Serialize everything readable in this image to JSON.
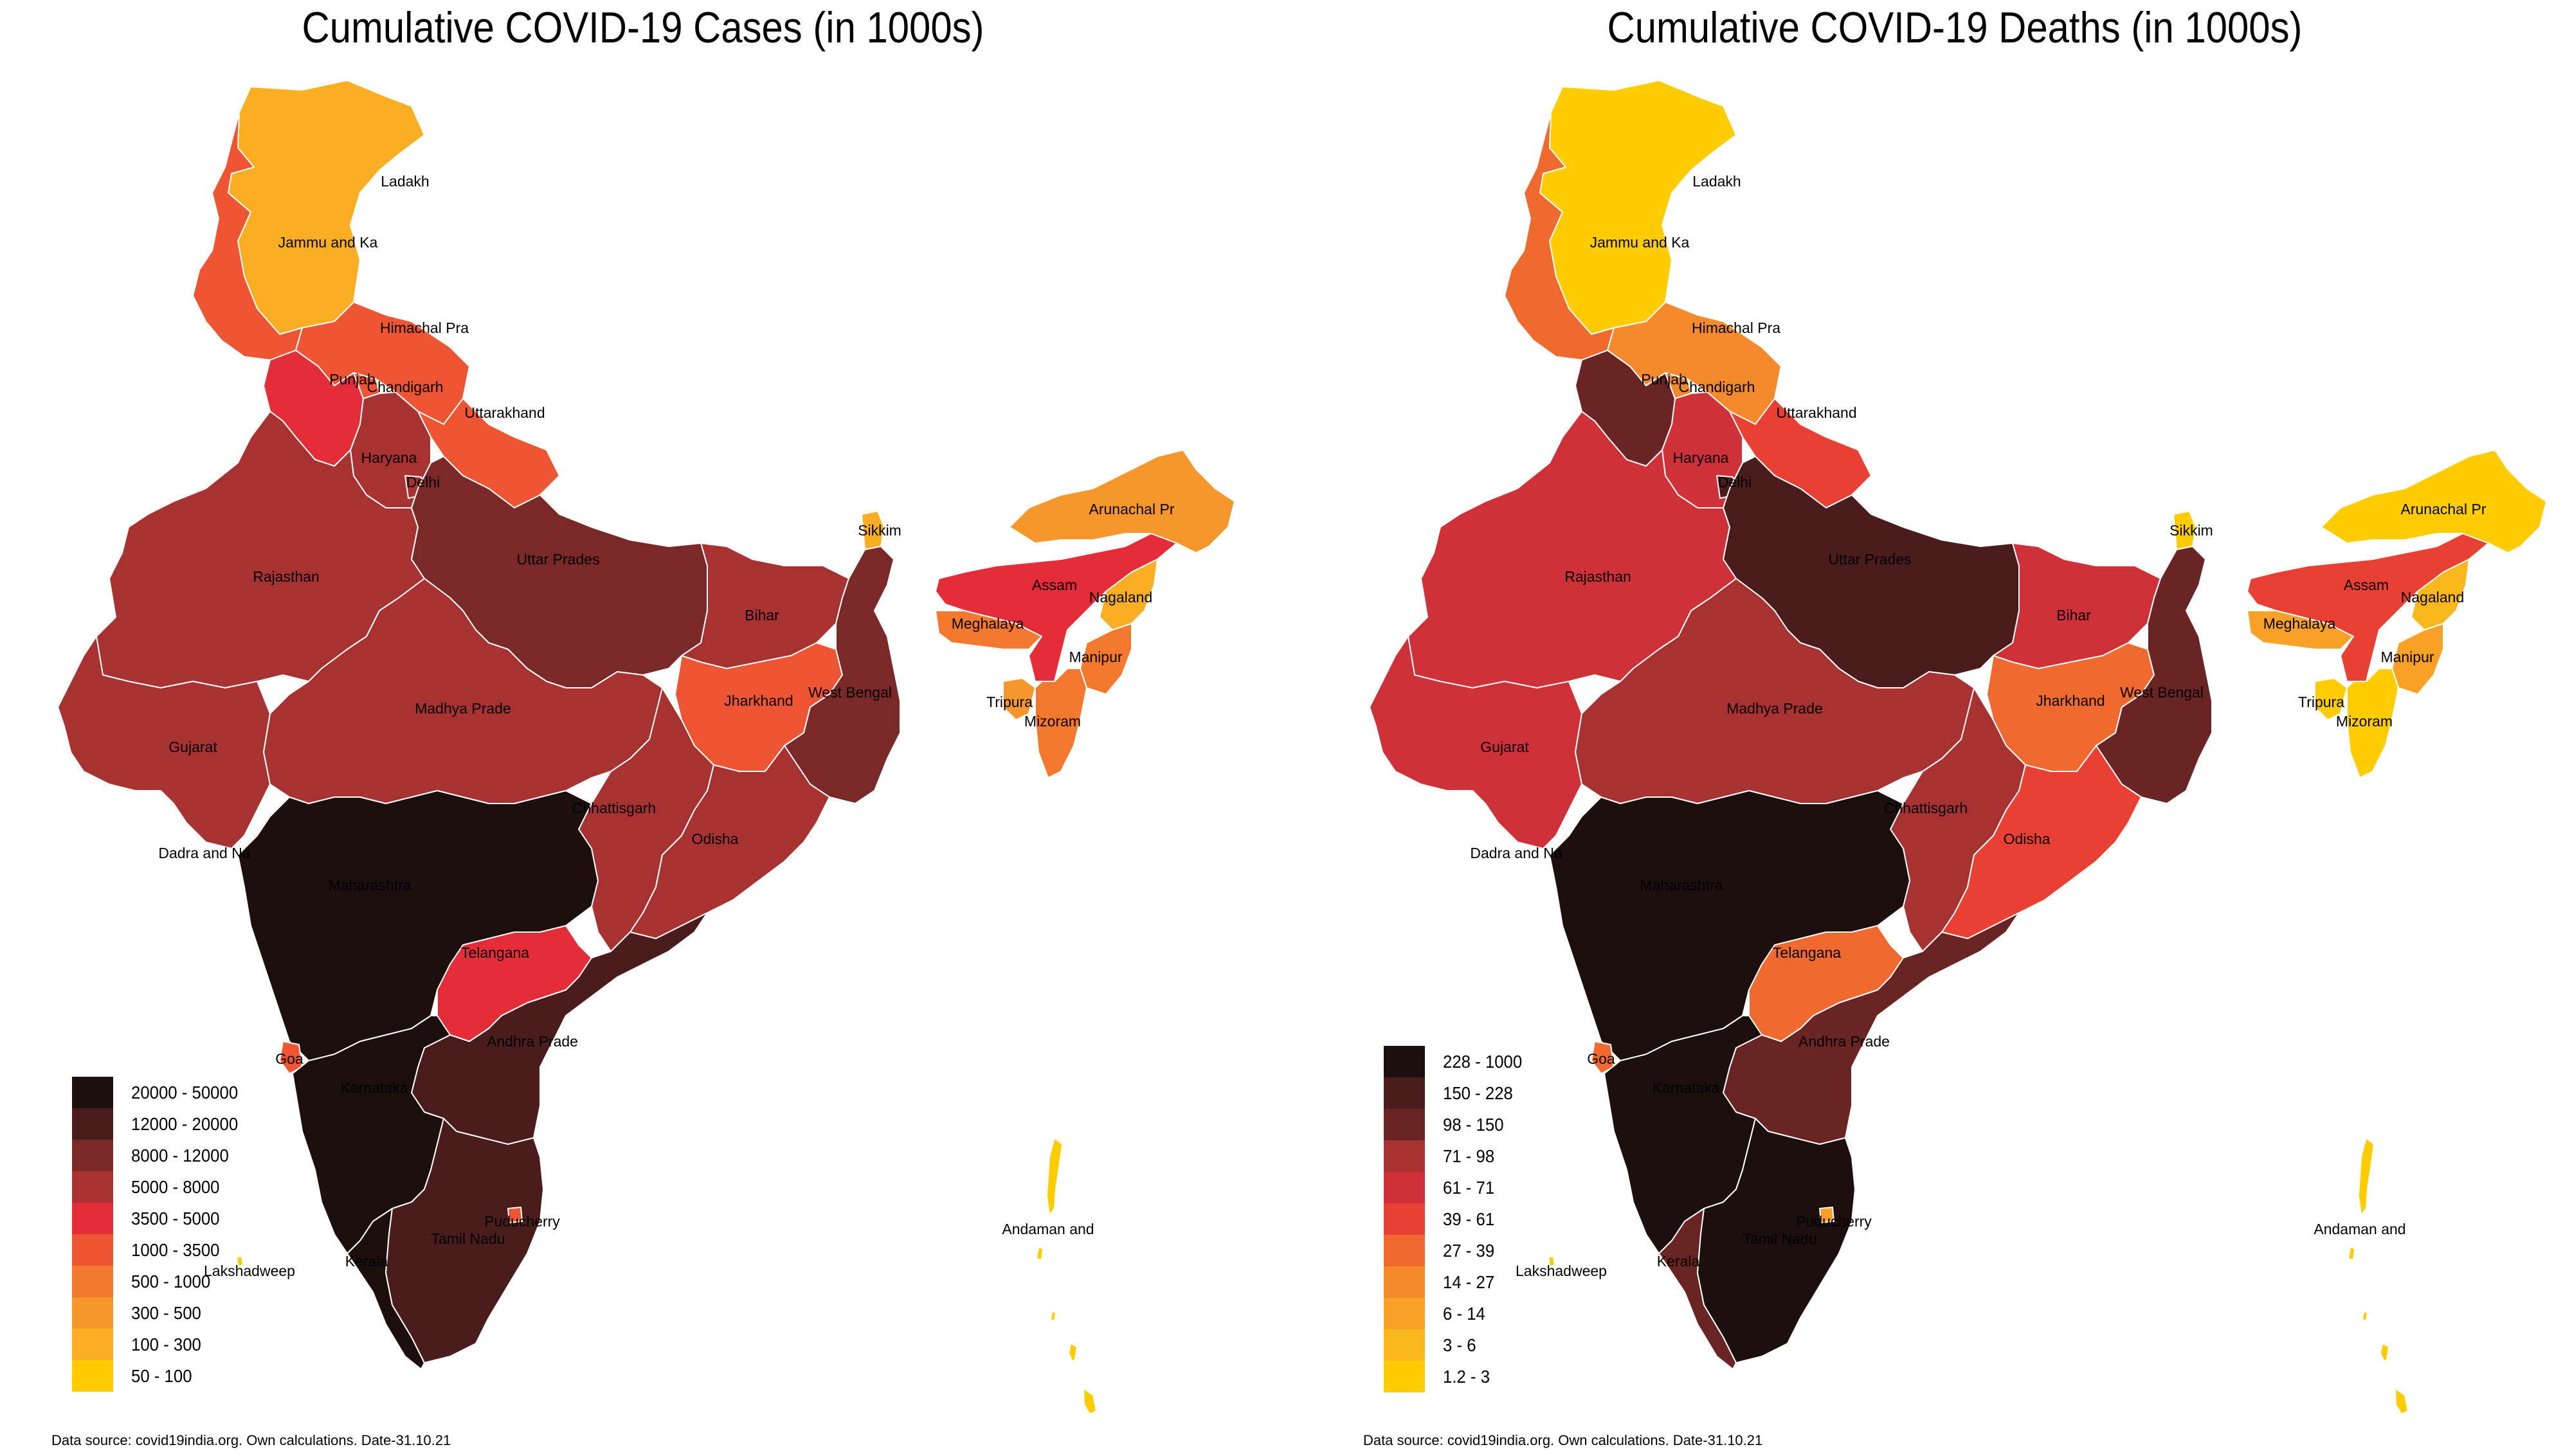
{
  "colors": {
    "scale": [
      "#1e0f0f",
      "#4a1c1c",
      "#7a2828",
      "#a83232",
      "#e52d3a",
      "#ef5533",
      "#f4792e",
      "#f7962a",
      "#fbae22",
      "#ffcc00"
    ],
    "border": "#ffffff"
  },
  "state_names": [
    "Ladakh",
    "Jammu and Ka",
    "Himachal Pra",
    "Punjab",
    "Chandigarh",
    "Uttarakhand",
    "Haryana",
    "Delhi",
    "Rajasthan",
    "Uttar Prades",
    "Bihar",
    "Sikkim",
    "Arunachal Pr",
    "Assam",
    "Nagaland",
    "Meghalaya",
    "Manipur",
    "Tripura",
    "Mizoram",
    "Gujarat",
    "Madhya Prade",
    "Jharkhand",
    "West Bengal",
    "Chhattisgarh",
    "Odisha",
    "Dadra and Na",
    "Maharashtra",
    "Telangana",
    "Andhra Prade",
    "Goa",
    "Karnataka",
    "Lakshadweep",
    "Kerala",
    "Tamil Nadu",
    "Puducherry",
    "Andaman and"
  ],
  "maps": [
    {
      "title": "Cumulative COVID-19 Cases (in 1000s)",
      "legend": [
        "20000 - 50000",
        "12000 - 20000",
        "8000 - 12000",
        "5000 - 8000",
        "3500 - 5000",
        "1000 - 3500",
        "500 - 1000",
        "300 - 500",
        "100 - 300",
        "50 - 100"
      ],
      "class_index": {
        "Ladakh": 8,
        "Jammu and Ka": 5,
        "Himachal Pra": 5,
        "Punjab": 4,
        "Chandigarh": 5,
        "Uttarakhand": 5,
        "Haryana": 3,
        "Delhi": 3,
        "Rajasthan": 3,
        "Uttar Prades": 2,
        "Bihar": 3,
        "Sikkim": 8,
        "Arunachal Pr": 7,
        "Assam": 4,
        "Nagaland": 8,
        "Meghalaya": 6,
        "Manipur": 6,
        "Tripura": 7,
        "Mizoram": 6,
        "Gujarat": 3,
        "Madhya Prade": 3,
        "Jharkhand": 5,
        "West Bengal": 2,
        "Chhattisgarh": 3,
        "Odisha": 3,
        "Dadra and Na": 8,
        "Maharashtra": 0,
        "Telangana": 4,
        "Andhra Prade": 1,
        "Goa": 5,
        "Karnataka": 0,
        "Lakshadweep": 9,
        "Kerala": 0,
        "Tamil Nadu": 1,
        "Puducherry": 5,
        "Andaman and": 9
      },
      "source": "Data source: covid19india.org. Own calculations. Date-31.10.21"
    },
    {
      "title": "Cumulative COVID-19 Deaths (in 1000s)",
      "legend": [
        "228 - 1000",
        "150 - 228",
        "98 - 150",
        "71 - 98",
        "61 - 71",
        "39 - 61",
        "27 - 39",
        "14 - 27",
        "6 - 14",
        "3 - 6",
        "1.2 - 3"
      ],
      "class_index": {
        "Ladakh": 10,
        "Jammu and Ka": 6,
        "Himachal Pra": 7,
        "Punjab": 2,
        "Chandigarh": 7,
        "Uttarakhand": 5,
        "Haryana": 4,
        "Delhi": 1,
        "Rajasthan": 4,
        "Uttar Prades": 1,
        "Bihar": 4,
        "Sikkim": 10,
        "Arunachal Pr": 10,
        "Assam": 5,
        "Nagaland": 9,
        "Meghalaya": 8,
        "Manipur": 8,
        "Tripura": 10,
        "Mizoram": 10,
        "Gujarat": 4,
        "Madhya Prade": 3,
        "Jharkhand": 6,
        "West Bengal": 2,
        "Chhattisgarh": 3,
        "Odisha": 5,
        "Dadra and Na": 10,
        "Maharashtra": 0,
        "Telangana": 6,
        "Andhra Prade": 2,
        "Goa": 6,
        "Karnataka": 0,
        "Lakshadweep": 10,
        "Kerala": 2,
        "Tamil Nadu": 0,
        "Puducherry": 8,
        "Andaman and": 10
      },
      "source": "Data source: covid19india.org. Own calculations. Date-31.10.21"
    }
  ],
  "legend_palettes": [
    [
      "#1e0f0f",
      "#4a1c1c",
      "#7a2828",
      "#a83232",
      "#e52d3a",
      "#ef5533",
      "#f4792e",
      "#f7962a",
      "#fbae22",
      "#ffcc00"
    ],
    [
      "#1e0f0f",
      "#4a1c1c",
      "#6b2424",
      "#a83232",
      "#d03038",
      "#ea4034",
      "#f06a30",
      "#f58a2c",
      "#f9a026",
      "#fbb81c",
      "#ffcc00"
    ]
  ]
}
